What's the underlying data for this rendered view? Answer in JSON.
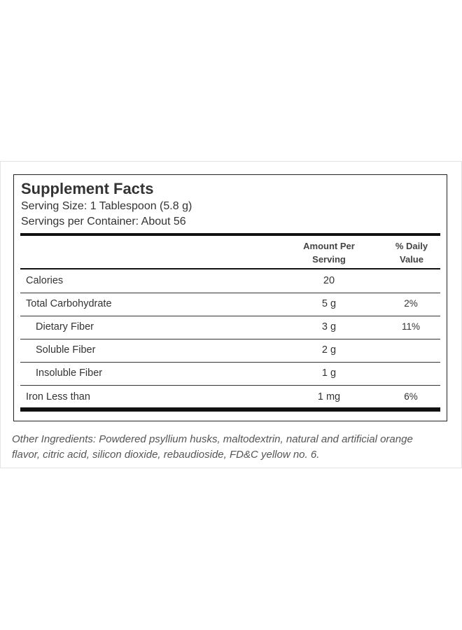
{
  "header": {
    "title": "Supplement Facts",
    "serving_size": "Serving Size: 1 Tablespoon (5.8 g)",
    "servings_per_container": "Servings per Container: About 56"
  },
  "table": {
    "columns": {
      "amount": "Amount Per Serving",
      "dv": "% Daily Value"
    },
    "rows": [
      {
        "name": "Calories",
        "amount": "20"
      },
      {
        "name": "Total Carbohydrate",
        "amount": "5 g",
        "dv": "2%"
      },
      {
        "name": "Dietary Fiber",
        "amount": "3 g",
        "dv": "11%"
      },
      {
        "name": "Soluble Fiber",
        "amount": "2 g"
      },
      {
        "name": "Insoluble Fiber",
        "amount": "1 g"
      },
      {
        "name": "Iron Less than",
        "amount": "1 mg",
        "dv": "6%"
      }
    ]
  },
  "footer": {
    "other_ingredients": "Other Ingredients: Powdered psyllium husks, maltodextrin, natural and artificial orange flavor, citric acid, silicon dioxide, rebaudioside, FD&C yellow no. 6."
  }
}
